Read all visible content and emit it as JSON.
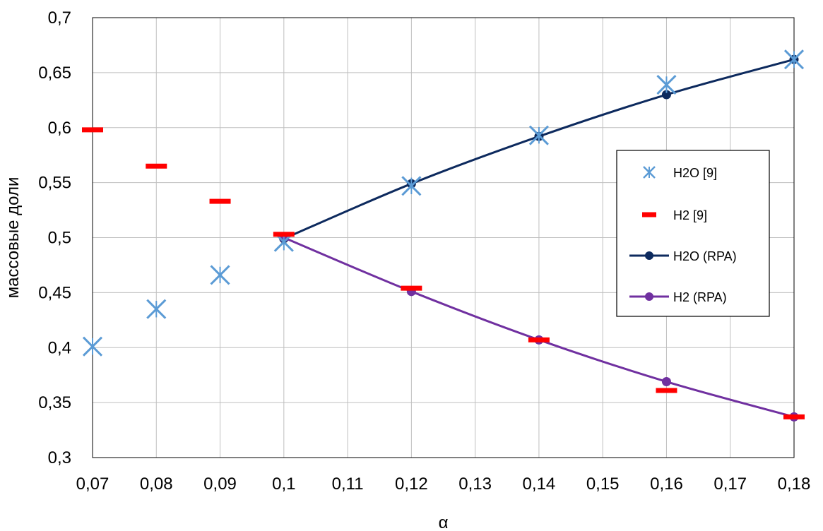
{
  "chart_data": {
    "type": "line",
    "title": "",
    "xlabel": "α",
    "ylabel": "массовые доли",
    "xlim": [
      0.07,
      0.18
    ],
    "ylim": [
      0.3,
      0.7
    ],
    "grid": true,
    "legend_position": "right",
    "x_ticks": [
      {
        "value": 0.07,
        "label": "0,07"
      },
      {
        "value": 0.08,
        "label": "0,08"
      },
      {
        "value": 0.09,
        "label": "0,09"
      },
      {
        "value": 0.1,
        "label": "0,1"
      },
      {
        "value": 0.11,
        "label": "0,11"
      },
      {
        "value": 0.12,
        "label": "0,12"
      },
      {
        "value": 0.13,
        "label": "0,13"
      },
      {
        "value": 0.14,
        "label": "0,14"
      },
      {
        "value": 0.15,
        "label": "0,15"
      },
      {
        "value": 0.16,
        "label": "0,16"
      },
      {
        "value": 0.17,
        "label": "0,17"
      },
      {
        "value": 0.18,
        "label": "0,18"
      }
    ],
    "y_ticks": [
      {
        "value": 0.3,
        "label": "0,3"
      },
      {
        "value": 0.35,
        "label": "0,35"
      },
      {
        "value": 0.4,
        "label": "0,4"
      },
      {
        "value": 0.45,
        "label": "0,45"
      },
      {
        "value": 0.5,
        "label": "0,5"
      },
      {
        "value": 0.55,
        "label": "0,55"
      },
      {
        "value": 0.6,
        "label": "0,6"
      },
      {
        "value": 0.65,
        "label": "0,65"
      },
      {
        "value": 0.7,
        "label": "0,7"
      }
    ],
    "series": [
      {
        "name": "H2O [9]",
        "marker": "star",
        "line": false,
        "color": "#5b9bd5",
        "points": [
          {
            "x": 0.07,
            "y": 0.401
          },
          {
            "x": 0.08,
            "y": 0.435
          },
          {
            "x": 0.09,
            "y": 0.466
          },
          {
            "x": 0.1,
            "y": 0.496
          },
          {
            "x": 0.12,
            "y": 0.547
          },
          {
            "x": 0.14,
            "y": 0.593
          },
          {
            "x": 0.16,
            "y": 0.639
          },
          {
            "x": 0.18,
            "y": 0.662
          }
        ]
      },
      {
        "name": "H2 [9]",
        "marker": "dash",
        "line": false,
        "color": "#ff0000",
        "points": [
          {
            "x": 0.07,
            "y": 0.598
          },
          {
            "x": 0.08,
            "y": 0.565
          },
          {
            "x": 0.09,
            "y": 0.533
          },
          {
            "x": 0.1,
            "y": 0.503
          },
          {
            "x": 0.12,
            "y": 0.454
          },
          {
            "x": 0.14,
            "y": 0.407
          },
          {
            "x": 0.16,
            "y": 0.361
          },
          {
            "x": 0.18,
            "y": 0.337
          }
        ]
      },
      {
        "name": "H2O (RPA)",
        "marker": "circle",
        "line": true,
        "color": "#0d2a5e",
        "points": [
          {
            "x": 0.1,
            "y": 0.499
          },
          {
            "x": 0.12,
            "y": 0.549
          },
          {
            "x": 0.14,
            "y": 0.592
          },
          {
            "x": 0.16,
            "y": 0.63
          },
          {
            "x": 0.18,
            "y": 0.662
          }
        ]
      },
      {
        "name": "H2 (RPA)",
        "marker": "circle",
        "line": true,
        "color": "#7030a0",
        "points": [
          {
            "x": 0.1,
            "y": 0.5
          },
          {
            "x": 0.12,
            "y": 0.451
          },
          {
            "x": 0.14,
            "y": 0.407
          },
          {
            "x": 0.16,
            "y": 0.369
          },
          {
            "x": 0.18,
            "y": 0.337
          }
        ]
      }
    ]
  }
}
